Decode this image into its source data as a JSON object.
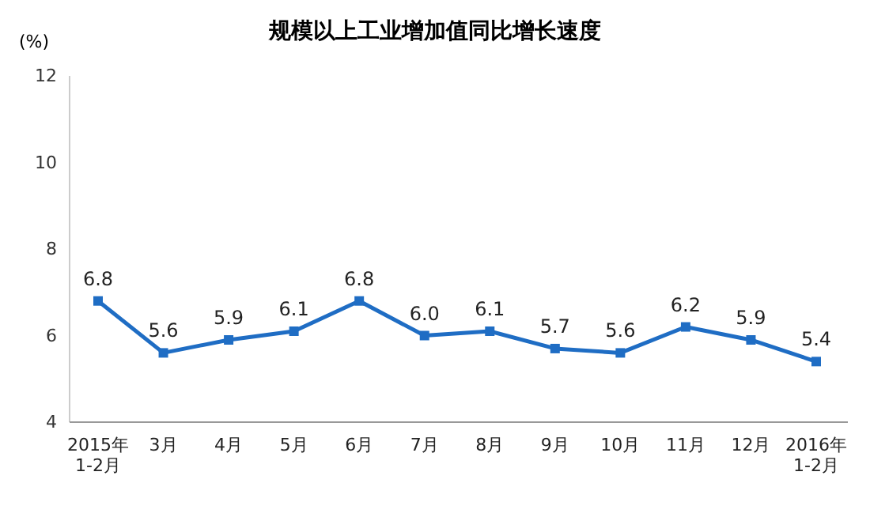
{
  "chart_data": {
    "type": "line",
    "title": "规模以上工业增加值同比增长速度",
    "ylabel": "(%)",
    "categories": [
      "2015年\n1-2月",
      "3月",
      "4月",
      "5月",
      "6月",
      "7月",
      "8月",
      "9月",
      "10月",
      "11月",
      "12月",
      "2016年\n1-2月"
    ],
    "series": [
      {
        "color": "#1f6dc4",
        "values": [
          6.8,
          5.6,
          5.9,
          6.1,
          6.8,
          6.0,
          6.1,
          5.7,
          5.6,
          6.2,
          5.9,
          5.4
        ],
        "value_labels": [
          "6.8",
          "5.6",
          "5.9",
          "6.1",
          "6.8",
          "6.0",
          "6.1",
          "5.7",
          "5.6",
          "6.2",
          "5.9",
          "5.4"
        ]
      }
    ],
    "ylim": [
      4,
      12
    ],
    "yticks": [
      4,
      6,
      8,
      10,
      12
    ],
    "grid": false,
    "marker": "square",
    "line_style": "solid"
  }
}
